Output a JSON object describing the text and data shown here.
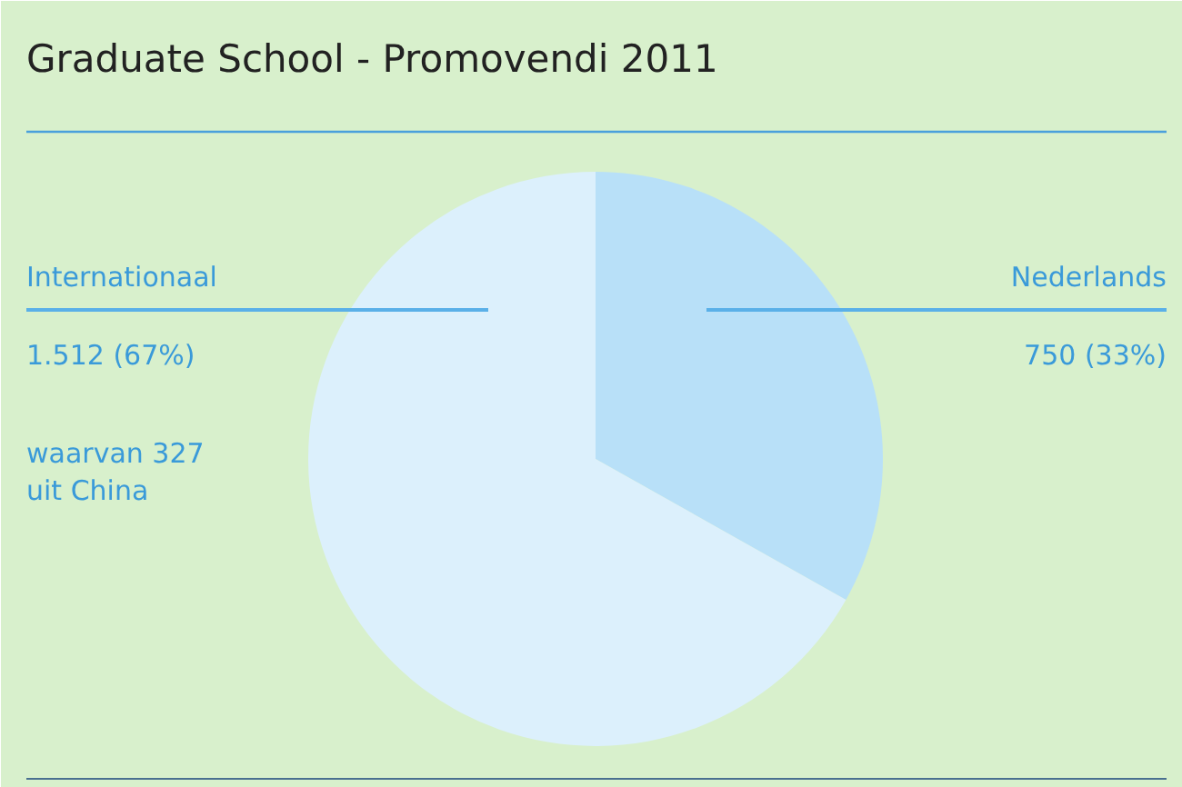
{
  "chart_data": {
    "type": "pie",
    "title": "Graduate School -  Promovendi 2011",
    "categories": [
      "Nederlands",
      "Internationaal"
    ],
    "values": [
      750,
      1512
    ],
    "colors": [
      "#b8e0f8",
      "#dcf0fc"
    ],
    "value_labels": [
      "750 (33%)",
      "1.512 (67%)"
    ],
    "annotations": [
      "waarvan 327\nuit China"
    ]
  }
}
